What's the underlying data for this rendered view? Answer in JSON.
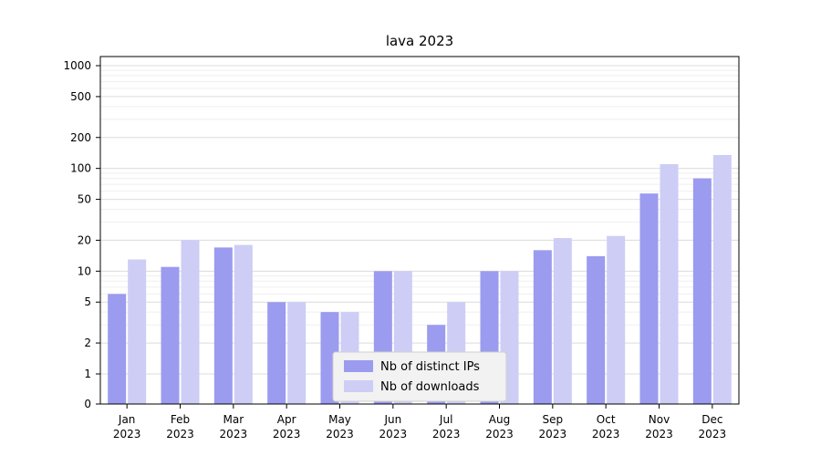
{
  "chart_data": {
    "type": "bar",
    "title": "lava 2023",
    "categories": [
      "Jan",
      "Feb",
      "Mar",
      "Apr",
      "May",
      "Jun",
      "Jul",
      "Aug",
      "Sep",
      "Oct",
      "Nov",
      "Dec"
    ],
    "year_label": "2023",
    "series": [
      {
        "name": "Nb of distinct IPs",
        "color": "#9b9bef",
        "values": [
          6,
          11,
          17,
          5,
          4,
          10,
          3,
          10,
          16,
          14,
          57,
          80
        ]
      },
      {
        "name": "Nb of downloads",
        "color": "#cdcdf6",
        "values": [
          13,
          20,
          18,
          5,
          4,
          10,
          5,
          10,
          21,
          22,
          110,
          135
        ]
      }
    ],
    "y_ticks": [
      0,
      1,
      2,
      5,
      10,
      20,
      50,
      100,
      200,
      500,
      1000
    ],
    "y_scale": "symlog",
    "ylim": [
      0,
      1000
    ],
    "grid": true,
    "legend_position": "lower center",
    "colors": {
      "axis": "#000000",
      "major_grid": "#dcdcdc",
      "minor_grid": "#efefef",
      "legend_bg": "#f2f2f2",
      "legend_border": "#cfcfcf",
      "text": "#000000"
    }
  }
}
